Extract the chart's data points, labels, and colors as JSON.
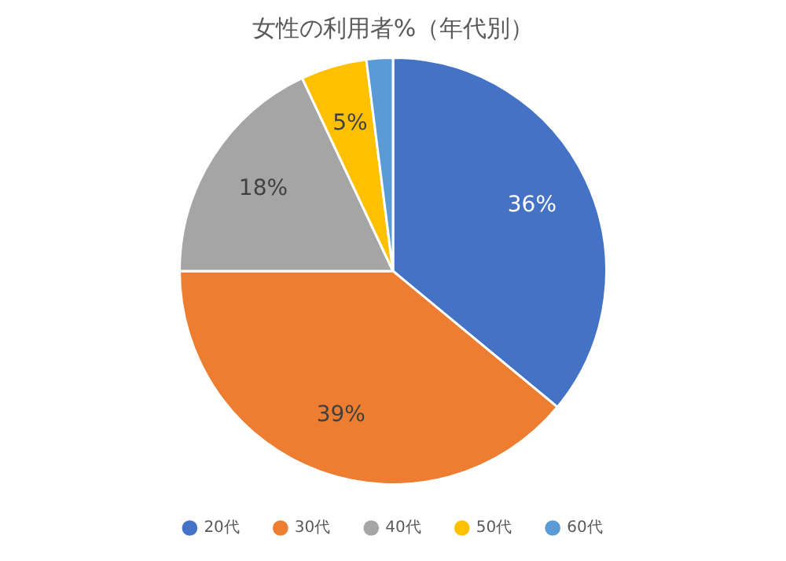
{
  "chart_data": {
    "type": "pie",
    "title": "女性の利用者%（年代別）",
    "categories": [
      "20代",
      "30代",
      "40代",
      "50代",
      "60代"
    ],
    "values": [
      36,
      39,
      18,
      5,
      2
    ],
    "colors": [
      "#4472c4",
      "#ed7d31",
      "#a5a5a5",
      "#ffc000",
      "#5b9bd5"
    ],
    "value_labels": [
      "36%",
      "39%",
      "18%",
      "5%",
      null
    ],
    "legend": "bottom"
  }
}
